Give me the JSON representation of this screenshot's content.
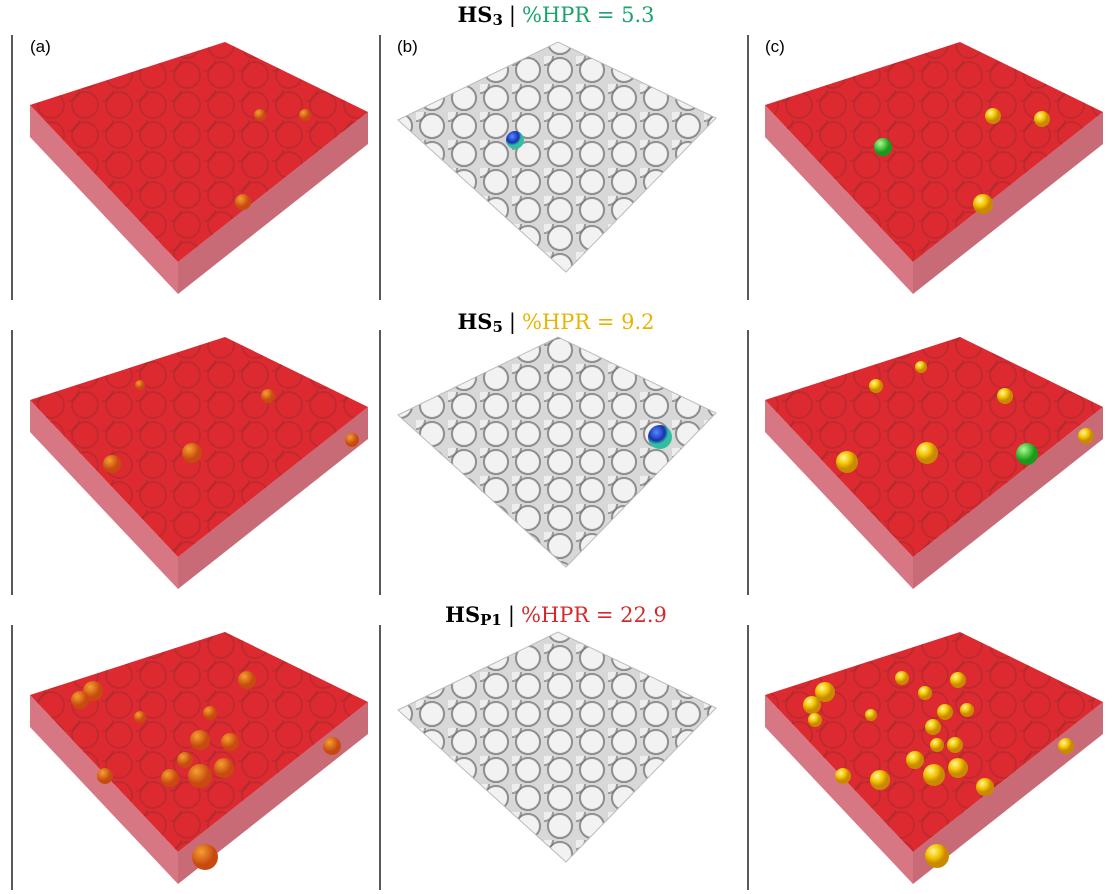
{
  "panels": [
    "(a)",
    "(b)",
    "(c)"
  ],
  "rows": [
    {
      "name": "HS",
      "subscript": "3",
      "separator": "|",
      "metric": "%HPR = 5.3",
      "metric_color": "#1aa36a"
    },
    {
      "name": "HS",
      "subscript": "5",
      "separator": "|",
      "metric": "%HPR = 9.2",
      "metric_color": "#e8b400"
    },
    {
      "name": "HS",
      "subscript": "P1",
      "separator": "|",
      "metric": "%HPR = 22.9",
      "metric_color": "#d42a2a"
    }
  ]
}
